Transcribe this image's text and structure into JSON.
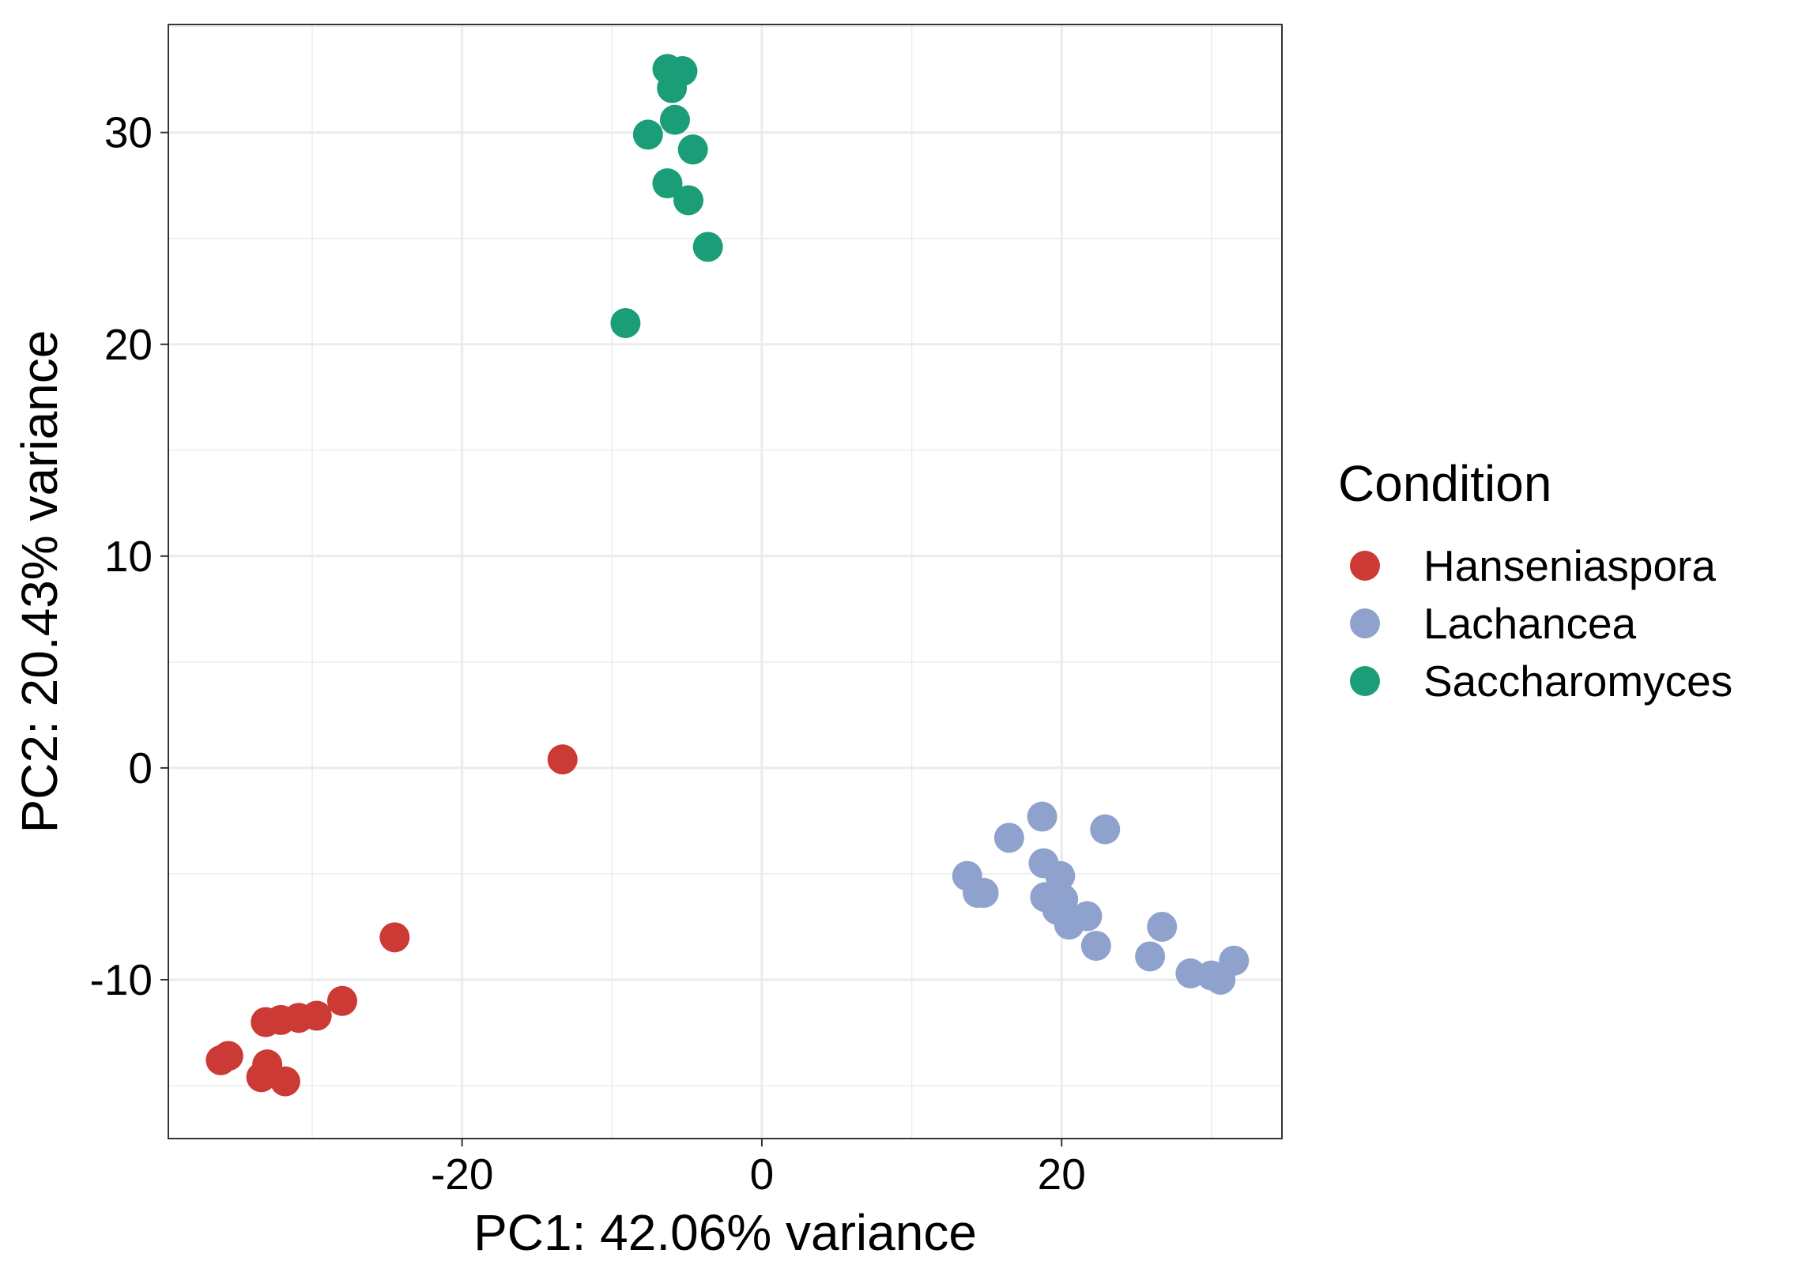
{
  "chart_data": {
    "type": "scatter",
    "xlabel": "PC1: 42.06% variance",
    "ylabel": "PC2: 20.43% variance",
    "xlim": [
      -39.6,
      34.7
    ],
    "ylim": [
      -17.5,
      35.1
    ],
    "x_ticks": [
      -20,
      0,
      20
    ],
    "y_ticks": [
      -10,
      0,
      10,
      20,
      30
    ],
    "x_tick_labels": [
      "-20",
      "0",
      "20"
    ],
    "y_tick_labels": [
      "-10",
      "0",
      "10",
      "20",
      "30"
    ],
    "grid": true,
    "legend": {
      "title": "Condition",
      "position": "right"
    },
    "series": [
      {
        "name": "Hanseniaspora",
        "color": "#CC3A36",
        "points": [
          [
            -13.3,
            0.4
          ],
          [
            -24.5,
            -8.0
          ],
          [
            -28.0,
            -11.0
          ],
          [
            -29.7,
            -11.7
          ],
          [
            -30.9,
            -11.8
          ],
          [
            -32.1,
            -11.9
          ],
          [
            -33.1,
            -12.0
          ],
          [
            -35.6,
            -13.6
          ],
          [
            -36.1,
            -13.8
          ],
          [
            -33.0,
            -14.0
          ],
          [
            -33.4,
            -14.6
          ],
          [
            -31.8,
            -14.8
          ]
        ]
      },
      {
        "name": "Lachancea",
        "color": "#8FA2CD",
        "points": [
          [
            18.7,
            -2.3
          ],
          [
            22.9,
            -2.9
          ],
          [
            16.5,
            -3.3
          ],
          [
            18.8,
            -4.5
          ],
          [
            13.7,
            -5.1
          ],
          [
            19.9,
            -5.1
          ],
          [
            14.4,
            -5.9
          ],
          [
            14.8,
            -5.9
          ],
          [
            18.9,
            -6.1
          ],
          [
            20.1,
            -6.2
          ],
          [
            19.7,
            -6.7
          ],
          [
            21.7,
            -7.0
          ],
          [
            20.5,
            -7.4
          ],
          [
            26.7,
            -7.5
          ],
          [
            22.3,
            -8.4
          ],
          [
            25.9,
            -8.9
          ],
          [
            28.6,
            -9.7
          ],
          [
            30.0,
            -9.8
          ],
          [
            30.6,
            -10.0
          ],
          [
            31.5,
            -9.1
          ]
        ]
      },
      {
        "name": "Saccharomyces",
        "color": "#1B9E77",
        "points": [
          [
            -6.3,
            33.0
          ],
          [
            -5.3,
            32.9
          ],
          [
            -6.0,
            32.1
          ],
          [
            -5.8,
            30.6
          ],
          [
            -7.6,
            29.9
          ],
          [
            -4.6,
            29.2
          ],
          [
            -6.3,
            27.6
          ],
          [
            -4.9,
            26.8
          ],
          [
            -3.6,
            24.6
          ],
          [
            -9.1,
            21.0
          ]
        ]
      }
    ]
  }
}
